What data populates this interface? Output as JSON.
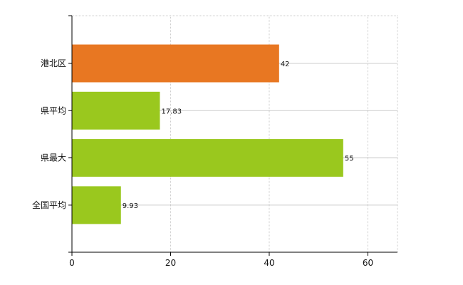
{
  "chart_data": {
    "type": "bar",
    "orientation": "horizontal",
    "categories": [
      "港北区",
      "県平均",
      "県最大",
      "全国平均"
    ],
    "values": [
      42,
      17.83,
      55,
      9.93
    ],
    "value_labels": [
      "42",
      "17.83",
      "55",
      "9.93"
    ],
    "colors": [
      "#e87722",
      "#9ac81e",
      "#9ac81e",
      "#9ac81e"
    ],
    "xlim": [
      0,
      66
    ],
    "xticks": [
      0,
      20,
      40,
      60
    ],
    "xtick_labels": [
      "0",
      "20",
      "40",
      "60"
    ],
    "grid": true
  }
}
